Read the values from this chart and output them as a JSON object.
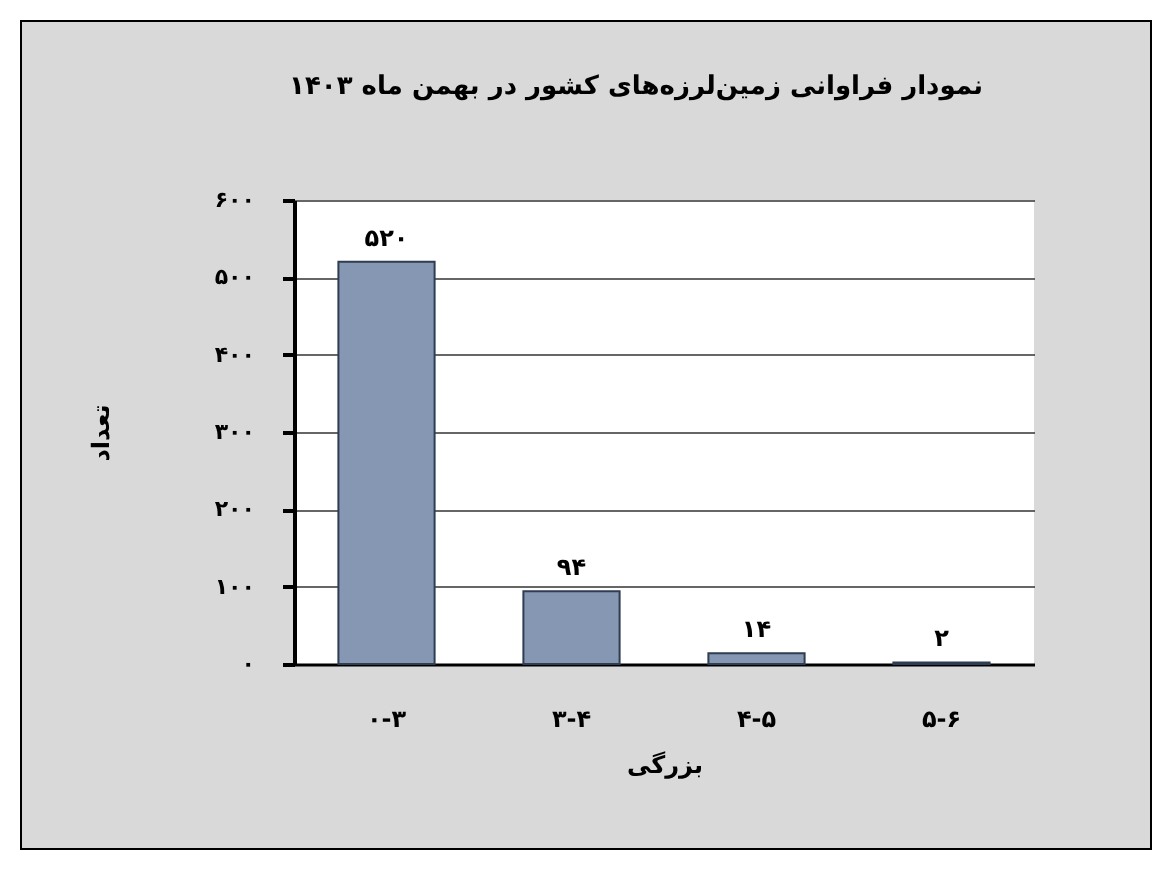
{
  "chart_data": {
    "type": "bar",
    "title": "نمودار فراوانی زمین‌لرزه‌های کشور در بهمن ماه ۱۴۰۳",
    "xlabel": "بزرگی",
    "ylabel": "تعداد",
    "categories": [
      "۰-۳",
      "۳-۴",
      "۴-۵",
      "۵-۶"
    ],
    "values": [
      520,
      94,
      14,
      2
    ],
    "value_labels": [
      "۵۲۰",
      "۹۴",
      "۱۴",
      "۲"
    ],
    "color": "#8597b3",
    "ylim": [
      0,
      600
    ],
    "yticks": [
      {
        "value": 0,
        "label": "۰"
      },
      {
        "value": 100,
        "label": "۱۰۰"
      },
      {
        "value": 200,
        "label": "۲۰۰"
      },
      {
        "value": 300,
        "label": "۳۰۰"
      },
      {
        "value": 400,
        "label": "۴۰۰"
      },
      {
        "value": 500,
        "label": "۵۰۰"
      },
      {
        "value": 600,
        "label": "۶۰۰"
      }
    ],
    "grid": "y"
  }
}
